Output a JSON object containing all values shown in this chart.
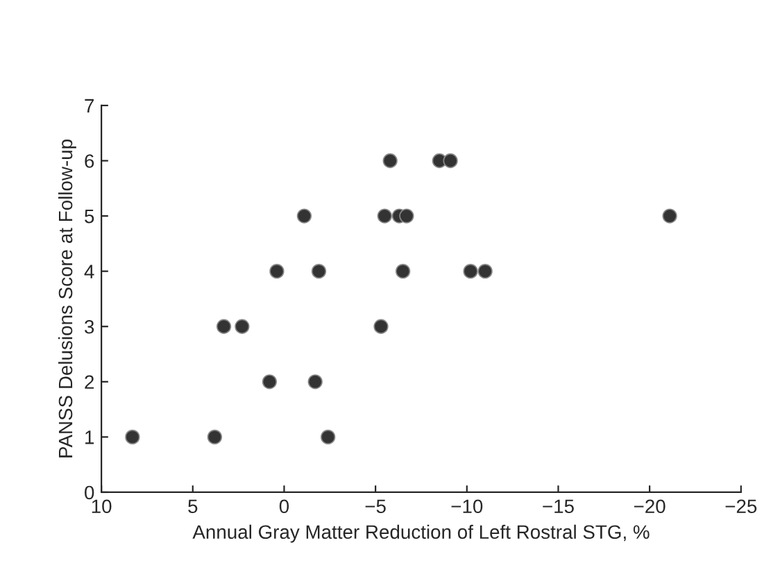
{
  "chart_data": {
    "type": "scatter",
    "xlabel": "Annual Gray Matter Reduction of Left Rostral STG, %",
    "ylabel": "PANSS Delusions Score at Follow-up",
    "series": [
      {
        "color": "#333333",
        "x": [
          8.3,
          3.8,
          -2.4,
          3.3,
          2.3,
          0.8,
          -1.7,
          0.4,
          -1.9,
          -1.1,
          -5.3,
          -5.5,
          -5.8,
          -6.3,
          -6.7,
          -6.5,
          -8.5,
          -9.1,
          -10.2,
          -11.0,
          -21.1
        ],
        "values": [
          1,
          1,
          1,
          3,
          3,
          2,
          2,
          4,
          4,
          5,
          3,
          5,
          6,
          5,
          5,
          4,
          6,
          6,
          4,
          4,
          5
        ]
      }
    ],
    "xlim": [
      10,
      -25
    ],
    "xticks": [
      10,
      5,
      0,
      {
        "value": -5,
        "label": "−5"
      },
      {
        "value": -10,
        "label": "−10"
      },
      {
        "value": -15,
        "label": "−15"
      },
      {
        "value": -20,
        "label": "−20"
      },
      {
        "value": -25,
        "label": "−25"
      }
    ],
    "ylim": [
      0,
      7
    ],
    "yticks": [
      0,
      1,
      2,
      3,
      4,
      5,
      6,
      7
    ],
    "grid": false,
    "legend": false,
    "marker": "circle"
  }
}
